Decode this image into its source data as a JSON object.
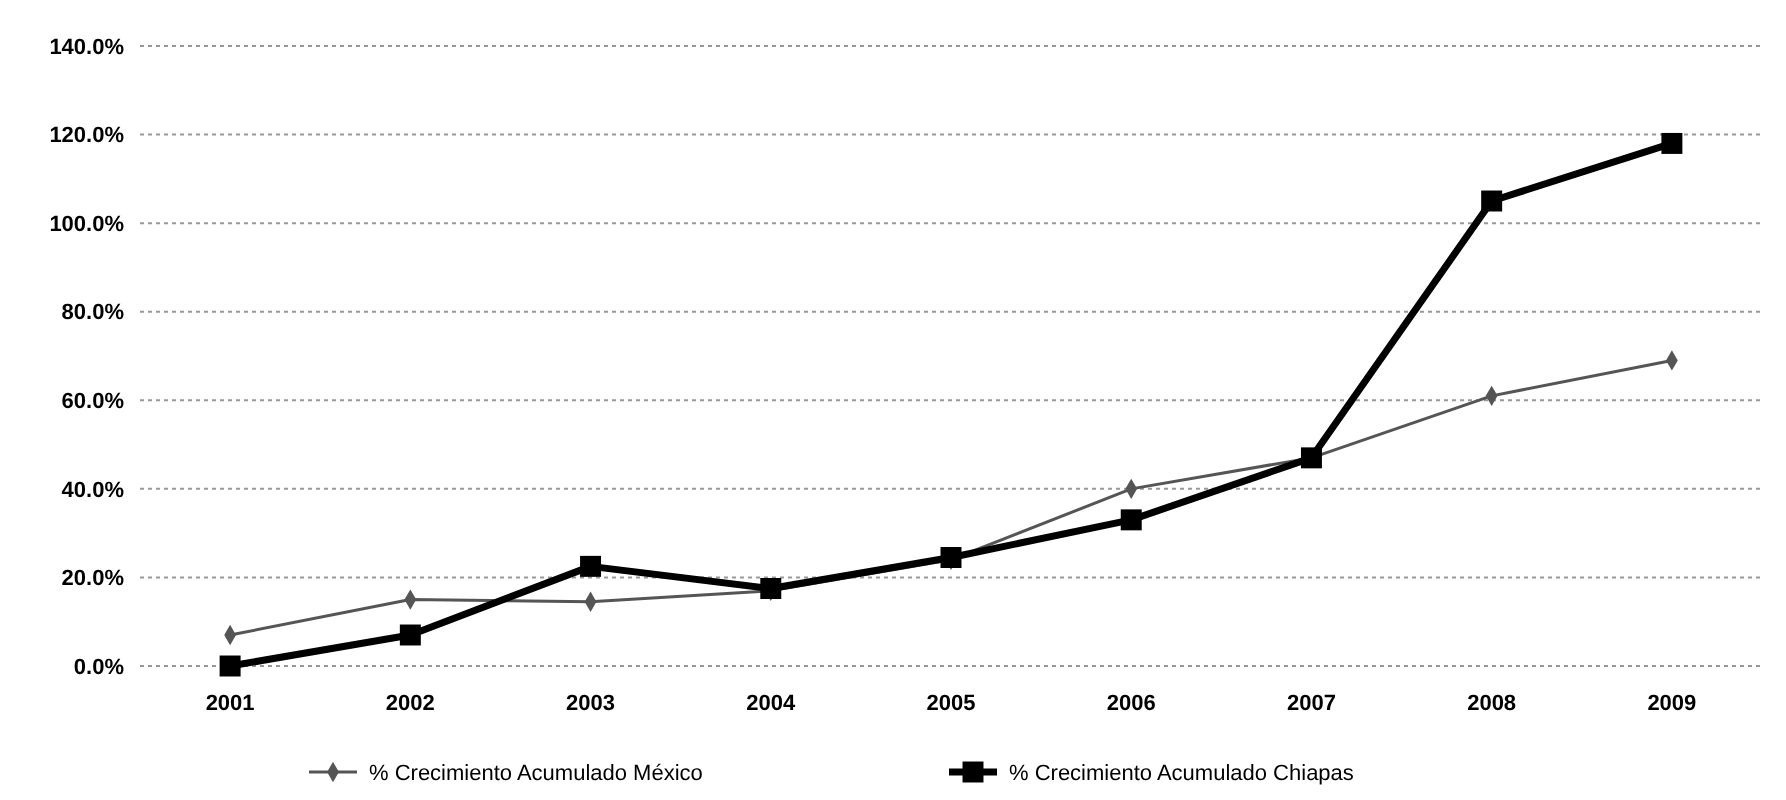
{
  "chart_data": {
    "type": "line",
    "categories": [
      "2001",
      "2002",
      "2003",
      "2004",
      "2005",
      "2006",
      "2007",
      "2008",
      "2009"
    ],
    "series": [
      {
        "name": "% Crecimiento Acumulado México",
        "color": "#555555",
        "marker": "diamond",
        "values": [
          7,
          15,
          14.5,
          17,
          24,
          40,
          47,
          61,
          69
        ]
      },
      {
        "name": "% Crecimiento Acumulado Chiapas",
        "color": "#000000",
        "marker": "square",
        "values": [
          0,
          7,
          22.5,
          17.5,
          24.5,
          33,
          47,
          105,
          118
        ]
      }
    ],
    "ylim": [
      0,
      140
    ],
    "yticks": [
      {
        "value": 0,
        "label": "0.0%"
      },
      {
        "value": 20,
        "label": "20.0%"
      },
      {
        "value": 40,
        "label": "40.0%"
      },
      {
        "value": 60,
        "label": "60.0%"
      },
      {
        "value": 80,
        "label": "80.0%"
      },
      {
        "value": 100,
        "label": "100.0%"
      },
      {
        "value": 120,
        "label": "120.0%"
      },
      {
        "value": 140,
        "label": "140.0%"
      }
    ],
    "grid": "y",
    "legend": "bottom"
  }
}
